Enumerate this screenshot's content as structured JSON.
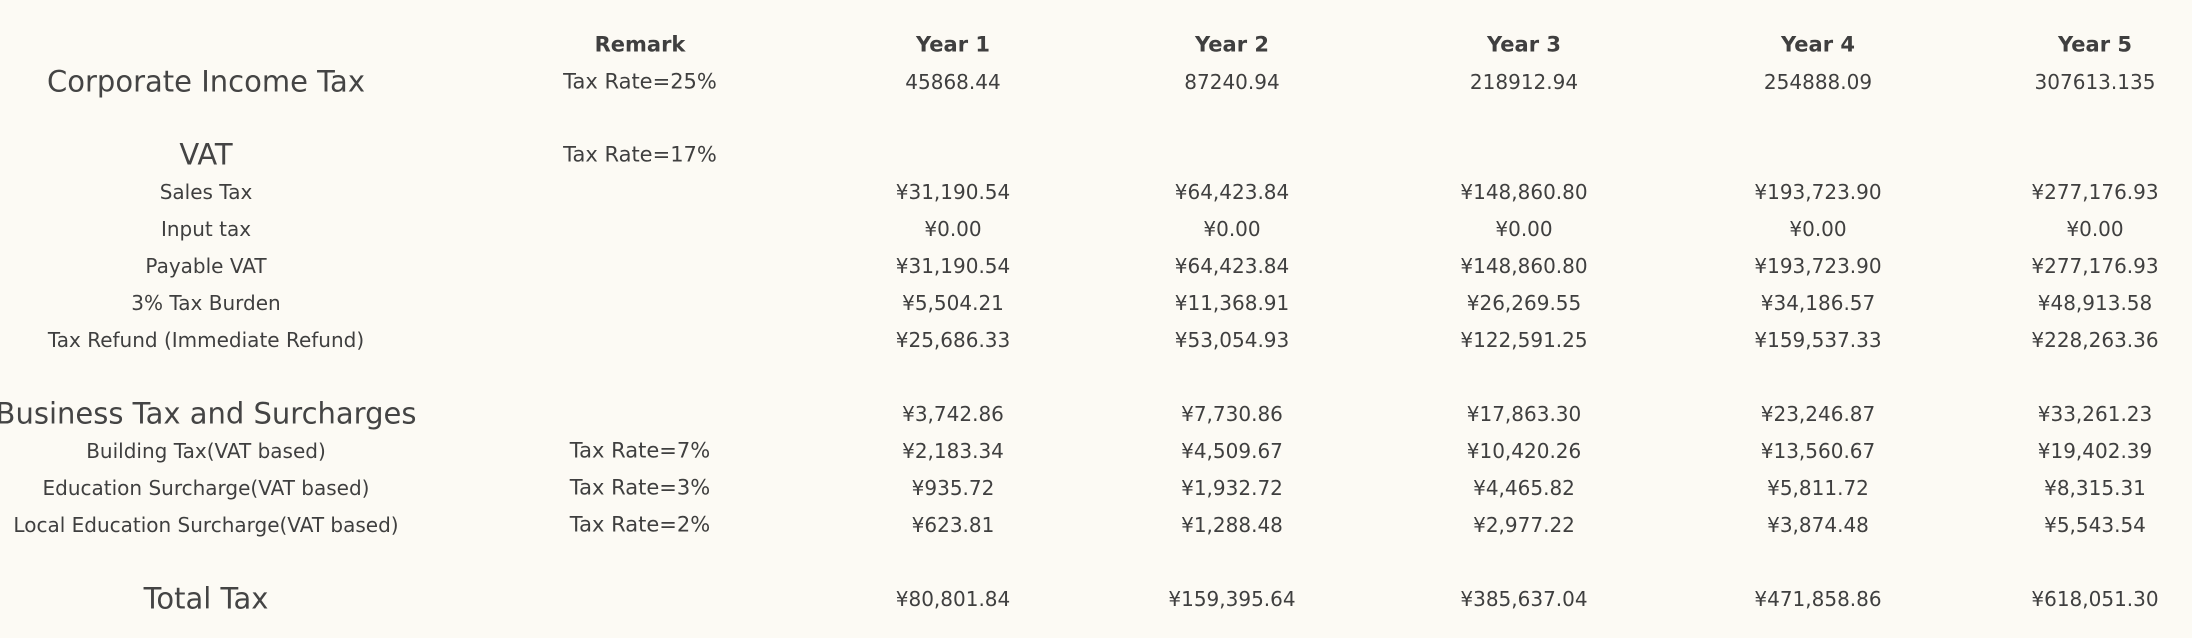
{
  "header": {
    "remark": "Remark",
    "years": [
      "Year 1",
      "Year 2",
      "Year 3",
      "Year 4",
      "Year 5"
    ]
  },
  "rows": [
    {
      "label": "Corporate Income Tax",
      "remark": "Tax Rate=25%",
      "values": [
        "45868.44",
        "87240.94",
        "218912.94",
        "254888.09",
        "307613.135"
      ]
    },
    {
      "label": "VAT",
      "remark": "Tax Rate=17%",
      "values": [
        "",
        "",
        "",
        "",
        ""
      ]
    },
    {
      "label": "Sales Tax",
      "remark": "",
      "values": [
        "¥31,190.54",
        "¥64,423.84",
        "¥148,860.80",
        "¥193,723.90",
        "¥277,176.93"
      ]
    },
    {
      "label": "Input tax",
      "remark": "",
      "values": [
        "¥0.00",
        "¥0.00",
        "¥0.00",
        "¥0.00",
        "¥0.00"
      ]
    },
    {
      "label": "Payable VAT",
      "remark": "",
      "values": [
        "¥31,190.54",
        "¥64,423.84",
        "¥148,860.80",
        "¥193,723.90",
        "¥277,176.93"
      ]
    },
    {
      "label": "3% Tax Burden",
      "remark": "",
      "values": [
        "¥5,504.21",
        "¥11,368.91",
        "¥26,269.55",
        "¥34,186.57",
        "¥48,913.58"
      ]
    },
    {
      "label": "Tax Refund (Immediate Refund)",
      "remark": "",
      "values": [
        "¥25,686.33",
        "¥53,054.93",
        "¥122,591.25",
        "¥159,537.33",
        "¥228,263.36"
      ]
    },
    {
      "label": "Business Tax and Surcharges",
      "remark": "",
      "values": [
        "¥3,742.86",
        "¥7,730.86",
        "¥17,863.30",
        "¥23,246.87",
        "¥33,261.23"
      ]
    },
    {
      "label": "Building Tax(VAT based)",
      "remark": "Tax Rate=7%",
      "values": [
        "¥2,183.34",
        "¥4,509.67",
        "¥10,420.26",
        "¥13,560.67",
        "¥19,402.39"
      ]
    },
    {
      "label": "Education Surcharge(VAT based)",
      "remark": "Tax Rate=3%",
      "values": [
        "¥935.72",
        "¥1,932.72",
        "¥4,465.82",
        "¥5,811.72",
        "¥8,315.31"
      ]
    },
    {
      "label": "Local Education Surcharge(VAT based)",
      "remark": "Tax Rate=2%",
      "values": [
        "¥623.81",
        "¥1,288.48",
        "¥2,977.22",
        "¥3,874.48",
        "¥5,543.54"
      ]
    },
    {
      "label": "Total Tax",
      "remark": "",
      "values": [
        "¥80,801.84",
        "¥159,395.64",
        "¥385,637.04",
        "¥471,858.86",
        "¥618,051.30"
      ]
    }
  ]
}
